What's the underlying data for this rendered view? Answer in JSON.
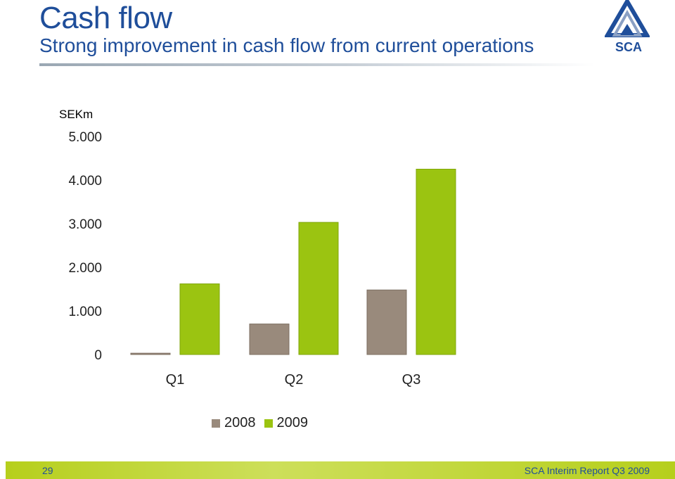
{
  "header": {
    "title": "Cash flow",
    "subtitle": "Strong improvement in cash flow from current operations"
  },
  "logo": {
    "text": "SCA"
  },
  "chart_data": {
    "type": "bar",
    "unit_label": "SEKm",
    "categories": [
      "Q1",
      "Q2",
      "Q3"
    ],
    "series": [
      {
        "name": "2008",
        "values": [
          30,
          700,
          1480
        ],
        "color": "#998a7c"
      },
      {
        "name": "2009",
        "values": [
          1620,
          3030,
          4250
        ],
        "color": "#9bc411"
      }
    ],
    "yticks": [
      "5.000",
      "4.000",
      "3.000",
      "2.000",
      "1.000",
      "0"
    ],
    "ylim": [
      0,
      5000
    ],
    "grid": false,
    "legend_position": "bottom"
  },
  "footer": {
    "page_number": "29",
    "text": "SCA Interim Report Q3 2009"
  },
  "colors": {
    "brand_blue": "#1f4e9a",
    "footer_green": "#b6cf1c"
  }
}
